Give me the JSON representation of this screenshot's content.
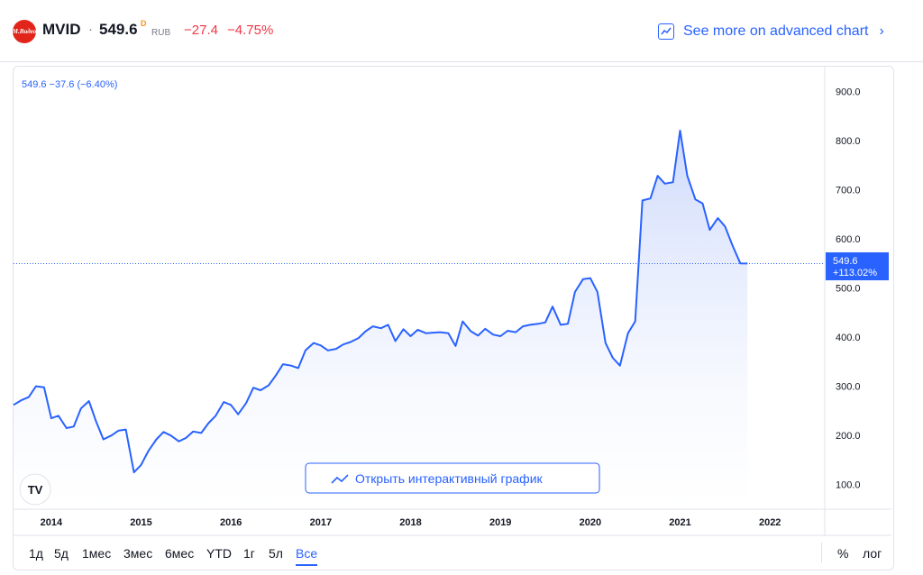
{
  "header": {
    "logo_text": "M.Видео",
    "ticker": "MVID",
    "separator": "·",
    "price": "549.6",
    "delayed_mark": "D",
    "currency": "RUB",
    "change": "−27.4",
    "change_percent": "−4.75%",
    "advanced_link": "See more on advanced chart",
    "chevron": "›"
  },
  "chart": {
    "range_label": "549.6  −37.6 (−6.40%)",
    "last_price_tag": "549.6",
    "last_change_tag": "+113.02%",
    "interactive_button": "Открыть интерактивный график",
    "watermark": "TV"
  },
  "chart_data": {
    "type": "area",
    "ylim": [
      50,
      950
    ],
    "yticks": [
      "100.0",
      "200.0",
      "300.0",
      "400.0",
      "500.0",
      "600.0",
      "700.0",
      "800.0",
      "900.0"
    ],
    "xticks": [
      {
        "label": "2014",
        "x": 2014.0
      },
      {
        "label": "2015",
        "x": 2015.0
      },
      {
        "label": "2016",
        "x": 2016.0
      },
      {
        "label": "2017",
        "x": 2017.0
      },
      {
        "label": "2018",
        "x": 2018.0
      },
      {
        "label": "2019",
        "x": 2019.0
      },
      {
        "label": "2020",
        "x": 2020.0
      },
      {
        "label": "2021",
        "x": 2021.0
      },
      {
        "label": "2022",
        "x": 2022.0
      }
    ],
    "xlim": [
      2013.58,
      2022.61
    ],
    "last_value": 549.6,
    "colors": {
      "line": "#2962ff",
      "fill_top": "#c9d6fb",
      "fill_bottom": "#ffffff",
      "tag": "#2962ff",
      "negative": "#f23645"
    },
    "x": [
      2013.58,
      2013.67,
      2013.75,
      2013.83,
      2013.92,
      2014.0,
      2014.08,
      2014.17,
      2014.25,
      2014.33,
      2014.42,
      2014.5,
      2014.58,
      2014.67,
      2014.75,
      2014.83,
      2014.92,
      2015.0,
      2015.08,
      2015.17,
      2015.25,
      2015.33,
      2015.42,
      2015.5,
      2015.58,
      2015.67,
      2015.75,
      2015.83,
      2015.92,
      2016.0,
      2016.08,
      2016.17,
      2016.25,
      2016.33,
      2016.42,
      2016.5,
      2016.58,
      2016.67,
      2016.75,
      2016.83,
      2016.92,
      2017.0,
      2017.08,
      2017.17,
      2017.25,
      2017.33,
      2017.42,
      2017.5,
      2017.58,
      2017.67,
      2017.75,
      2017.83,
      2017.92,
      2018.0,
      2018.08,
      2018.17,
      2018.25,
      2018.33,
      2018.42,
      2018.5,
      2018.58,
      2018.67,
      2018.75,
      2018.83,
      2018.92,
      2019.0,
      2019.08,
      2019.17,
      2019.25,
      2019.33,
      2019.42,
      2019.5,
      2019.58,
      2019.67,
      2019.75,
      2019.83,
      2019.92,
      2020.0,
      2020.08,
      2020.17,
      2020.25,
      2020.33,
      2020.42,
      2020.5,
      2020.58,
      2020.67,
      2020.75,
      2020.83,
      2020.92,
      2021.0,
      2021.08,
      2021.17,
      2021.25,
      2021.33,
      2021.42,
      2021.5,
      2021.58,
      2021.67,
      2021.75
    ],
    "y": [
      262,
      272,
      278,
      300,
      298,
      235,
      240,
      215,
      218,
      255,
      270,
      228,
      192,
      200,
      210,
      212,
      125,
      140,
      168,
      192,
      207,
      200,
      188,
      195,
      208,
      205,
      225,
      240,
      268,
      262,
      243,
      266,
      297,
      292,
      302,
      322,
      345,
      342,
      337,
      373,
      388,
      383,
      373,
      376,
      385,
      390,
      398,
      412,
      422,
      418,
      425,
      392,
      416,
      402,
      415,
      408,
      409,
      410,
      408,
      382,
      432,
      412,
      403,
      417,
      405,
      402,
      413,
      410,
      422,
      425,
      427,
      430,
      462,
      425,
      427,
      492,
      518,
      520,
      492,
      388,
      358,
      342,
      408,
      432,
      678,
      682,
      728,
      712,
      715,
      820,
      728,
      680,
      672,
      618,
      642,
      625,
      588,
      550,
      549.6
    ]
  },
  "ranges": [
    "1д",
    "5д",
    "1мес",
    "3мес",
    "6мес",
    "YTD",
    "1г",
    "5л",
    "Все"
  ],
  "active_range": "Все",
  "bottom_right": {
    "percent": "%",
    "log": "лог"
  }
}
